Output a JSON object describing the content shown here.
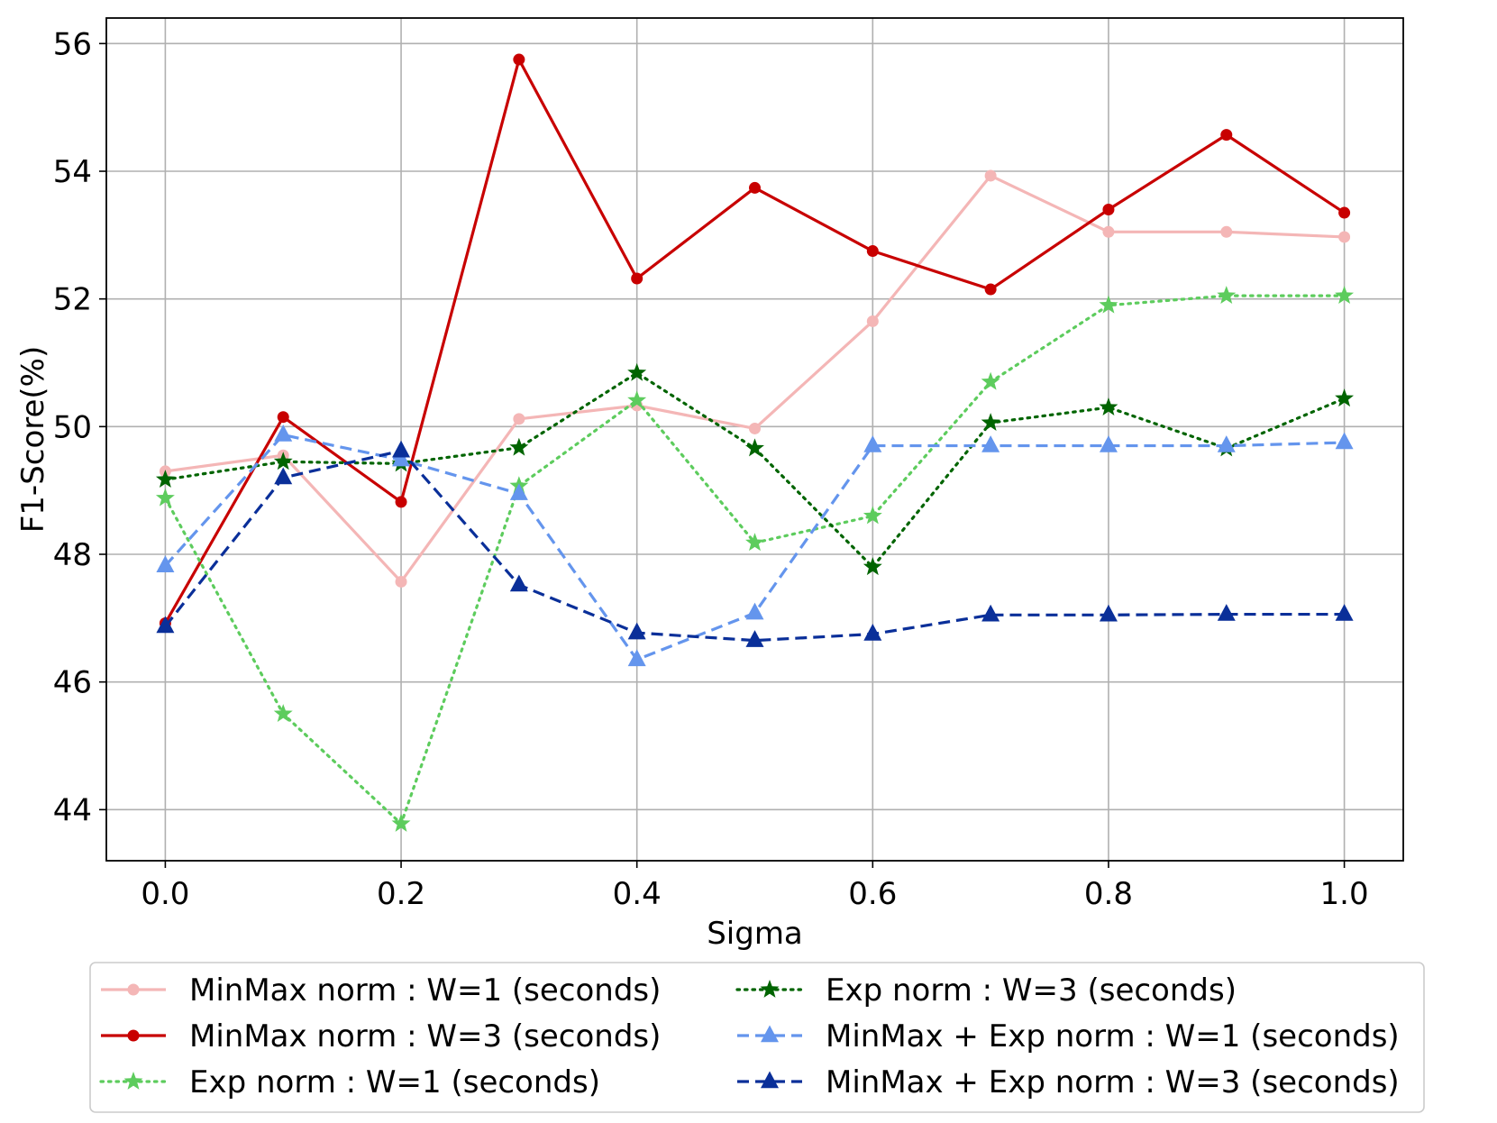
{
  "chart_data": {
    "type": "line",
    "title": "",
    "xlabel": "Sigma",
    "ylabel": "F1-Score(%)",
    "xlim": [
      -0.05,
      1.05
    ],
    "ylim": [
      43.2,
      56.4
    ],
    "xticks": [
      0.0,
      0.2,
      0.4,
      0.6,
      0.8,
      1.0
    ],
    "xtick_labels": [
      "0.0",
      "0.2",
      "0.4",
      "0.6",
      "0.8",
      "1.0"
    ],
    "yticks": [
      44,
      46,
      48,
      50,
      52,
      54,
      56
    ],
    "ytick_labels": [
      "44",
      "46",
      "48",
      "50",
      "52",
      "54",
      "56"
    ],
    "grid": true,
    "legend_position": "bottom (below plot), two columns",
    "x": [
      0.0,
      0.1,
      0.2,
      0.3,
      0.4,
      0.5,
      0.6,
      0.7,
      0.8,
      0.9,
      1.0
    ],
    "series": [
      {
        "name": "MinMax norm : W=1 (seconds)",
        "color": "#f4b6b6",
        "line_style": "solid",
        "marker": "circle",
        "values": [
          49.3,
          49.55,
          47.57,
          50.12,
          50.33,
          49.97,
          51.65,
          53.93,
          53.05,
          53.05,
          52.97
        ]
      },
      {
        "name": "MinMax norm : W=3 (seconds)",
        "color": "#c80000",
        "line_style": "solid",
        "marker": "circle",
        "values": [
          46.92,
          50.15,
          48.82,
          55.75,
          52.32,
          53.74,
          52.75,
          52.15,
          53.4,
          54.57,
          53.35
        ]
      },
      {
        "name": "Exp norm : W=1 (seconds)",
        "color": "#5dcc5d",
        "line_style": "dotted",
        "marker": "star",
        "values": [
          48.88,
          45.5,
          43.78,
          49.07,
          50.41,
          48.18,
          48.6,
          50.7,
          51.9,
          52.05,
          52.05
        ]
      },
      {
        "name": "Exp norm : W=3 (seconds)",
        "color": "#006400",
        "line_style": "dotted",
        "marker": "star",
        "values": [
          49.17,
          49.45,
          49.42,
          49.67,
          50.84,
          49.66,
          47.8,
          50.06,
          50.3,
          49.66,
          50.44
        ]
      },
      {
        "name": "MinMax + Exp norm : W=1 (seconds)",
        "color": "#6495ed",
        "line_style": "dashed",
        "marker": "triangle",
        "values": [
          47.82,
          49.87,
          49.48,
          48.95,
          46.35,
          47.08,
          49.7,
          49.7,
          49.7,
          49.7,
          49.75
        ]
      },
      {
        "name": "MinMax + Exp norm : W=3 (seconds)",
        "color": "#0a2f99",
        "line_style": "dashed",
        "marker": "triangle",
        "values": [
          46.87,
          49.2,
          49.62,
          47.52,
          46.77,
          46.65,
          46.75,
          47.05,
          47.05,
          47.06,
          47.06
        ]
      }
    ]
  }
}
